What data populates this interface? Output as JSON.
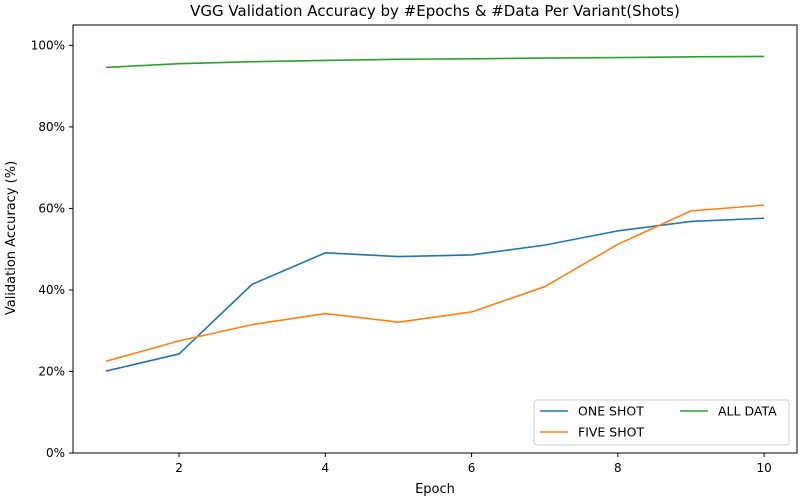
{
  "chart_data": {
    "type": "line",
    "title": "VGG Validation Accuracy by #Epochs & #Data Per Variant(Shots)",
    "xlabel": "Epoch",
    "ylabel": "Validation Accuracy (%)",
    "xlim": [
      0.55,
      10.45
    ],
    "ylim": [
      0,
      1.05
    ],
    "xticks": [
      2,
      4,
      6,
      8,
      10
    ],
    "xtick_labels": [
      "2",
      "4",
      "6",
      "8",
      "10"
    ],
    "yticks": [
      0,
      0.2,
      0.4,
      0.6,
      0.8,
      1.0
    ],
    "ytick_labels": [
      "0%",
      "20%",
      "40%",
      "60%",
      "80%",
      "100%"
    ],
    "grid": false,
    "legend_position": "bottom-right",
    "x": [
      1,
      2,
      3,
      4,
      5,
      6,
      7,
      8,
      9,
      10
    ],
    "series": [
      {
        "name": "ONE SHOT",
        "color": "#1f77b4",
        "values": [
          0.201,
          0.243,
          0.414,
          0.491,
          0.482,
          0.486,
          0.51,
          0.545,
          0.568,
          0.576
        ]
      },
      {
        "name": "FIVE SHOT",
        "color": "#ff7f0e",
        "values": [
          0.225,
          0.275,
          0.315,
          0.342,
          0.321,
          0.346,
          0.408,
          0.512,
          0.594,
          0.608
        ]
      },
      {
        "name": "ALL DATA",
        "color": "#2ca02c",
        "values": [
          0.946,
          0.955,
          0.96,
          0.963,
          0.966,
          0.967,
          0.969,
          0.97,
          0.972,
          0.973
        ]
      }
    ]
  }
}
